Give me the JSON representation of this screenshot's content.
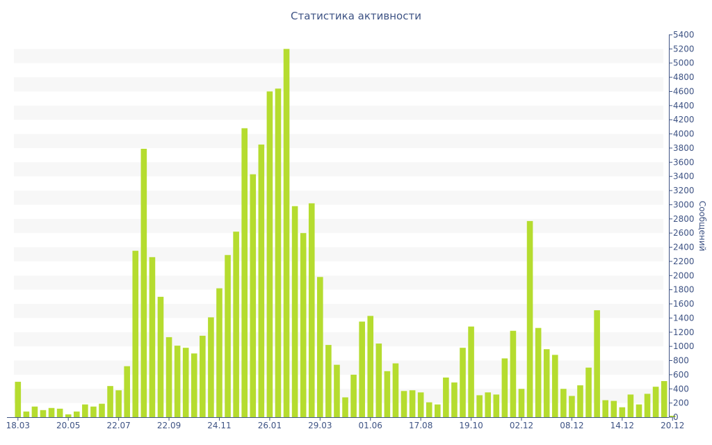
{
  "chart_data": {
    "type": "bar",
    "title": "Статистика активности",
    "ylabel": "Сообщений",
    "xlabel": "",
    "ylim": [
      0,
      5400
    ],
    "y_tick_step": 200,
    "grid": "alternating horizontal bands",
    "y_axis_side": "right",
    "x_tick_labels": [
      "18.03",
      "20.05",
      "22.07",
      "22.09",
      "24.11",
      "26.01",
      "29.03",
      "01.06",
      "17.08",
      "19.10",
      "02.12",
      "08.12",
      "14.12",
      "20.12"
    ],
    "x_tick_bar_index": [
      0,
      6,
      12,
      18,
      24,
      30,
      36,
      42,
      48,
      54,
      60,
      66,
      72,
      78
    ],
    "values": [
      500,
      80,
      150,
      100,
      130,
      120,
      40,
      80,
      180,
      150,
      190,
      440,
      380,
      720,
      2350,
      3790,
      2260,
      1700,
      1130,
      1010,
      980,
      900,
      1150,
      1410,
      1820,
      2290,
      2620,
      4080,
      3430,
      3850,
      4600,
      4640,
      5200,
      2980,
      2600,
      3020,
      1980,
      1020,
      740,
      280,
      600,
      1350,
      1430,
      1040,
      650,
      760,
      370,
      380,
      350,
      210,
      180,
      560,
      490,
      980,
      1280,
      310,
      350,
      320,
      830,
      1220,
      400,
      2770,
      1260,
      960,
      880,
      400,
      300,
      450,
      700,
      1510,
      240,
      230,
      140,
      320,
      180,
      330,
      430,
      510,
      20
    ],
    "colors": {
      "bar": "#b5dc2f",
      "text": "#3e5384",
      "band": "#f7f7f7",
      "axis": "#3e5384"
    }
  }
}
